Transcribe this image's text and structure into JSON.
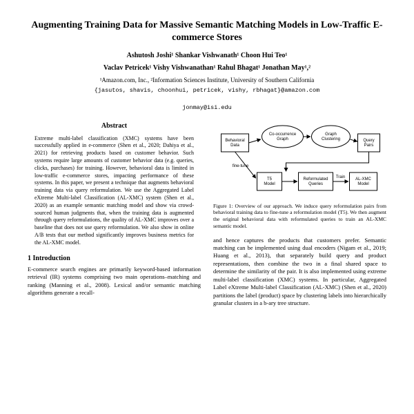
{
  "title": "Augmenting Training Data for Massive Semantic Matching Models in Low-Traffic E-commerce Stores",
  "authors_line1": "Ashutosh Joshi¹  Shankar Vishwanath¹  Choon Hui Teo¹",
  "authors_line2": "Vaclav Petricek¹  Vishy Vishwanathan¹  Rahul Bhagat¹  Jonathan May¹,²",
  "affil": "¹Amazon.com, Inc., ²Information Sciences Institute, University of Southern California",
  "emails_line1": "{jasutos, shavis, choonhui, petricek, vishy, rbhagat}@amazon.com",
  "emails_line2": "jonmay@isi.edu",
  "abstract_head": "Abstract",
  "abstract_body": "Extreme multi-label classification (XMC) systems have been successfully applied in e-commerce (Shen et al., 2020; Dahiya et al., 2021) for retrieving products based on customer behavior. Such systems require large amounts of customer behavior data (e.g. queries, clicks, purchases) for training. However, behavioral data is limited in low-traffic e-commerce stores, impacting performance of these systems. In this paper, we present a technique that augments behavioral training data via query reformulation. We use the Aggregated Label eXtreme Multi-label Classification (AL-XMC) system (Shen et al., 2020) as an example semantic matching model and show via crowd-sourced human judgments that, when the training data is augmented through query reformulations, the quality of AL-XMC improves over a baseline that does not use query reformulation. We also show in online A/B tests that our method significantly improves business metrics for the AL-XMC model.",
  "sec1_head": "1   Introduction",
  "sec1_body": "E-commerce search engines are primarily keyword-based information retrieval (IR) systems comprising two main operations–matching and ranking (Manning et al., 2008). Lexical and/or semantic matching algorithms generate a recall-",
  "figure": {
    "nodes": {
      "behavior": "Behavioral\nData",
      "cooc": "Co-occurrence\nGraph",
      "cluster": "Graph\nClustering",
      "pairs": "Query\nPairs",
      "t5": "T5\nModel",
      "reform": "Reformulated\nQueries",
      "alxmc": "AL-XMC\nModel"
    },
    "labels": {
      "finetune": "fine-tune",
      "train": "Train"
    },
    "colors": {
      "stroke": "#000000",
      "fill": "#ffffff",
      "text": "#000000"
    }
  },
  "fig_caption": "Figure 1: Overview of our approach. We induce query reformulation pairs from behavioral training data to fine-tune a reformulation model (T5). We then augment the original behavioral data with reformulated queries to train an AL-XMC semantic model.",
  "col2_body": "and hence captures the products that customers prefer. Semantic matching can be implemented using dual encoders (Nigam et al., 2019; Huang et al., 2013), that separately build query and product representations, then combine the two in a final shared space to determine the similarity of the pair. It is also implemented using extreme multi-label classification (XMC) systems. In particular, Aggregated Label eXtreme Multi-label Classification (AL-XMC) (Shen et al., 2020) partitions the label (product) space by clustering labels into hierarchically granular clusters in a b-ary tree structure."
}
